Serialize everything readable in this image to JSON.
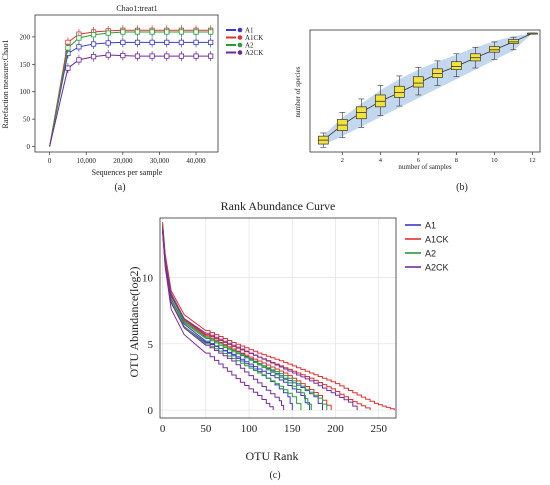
{
  "panel_labels": [
    "(a)",
    "(b)",
    "(c)"
  ],
  "chart_data": [
    {
      "type": "line",
      "title": "Chao1:treat1",
      "xlabel": "Sequences per sample",
      "ylabel": "Rarefaction measure:Chao1",
      "xlim": [
        -4000,
        46000
      ],
      "ylim": [
        -10,
        240
      ],
      "xticks": [
        0,
        10000,
        20000,
        30000,
        40000
      ],
      "xtick_labels": [
        "0",
        "10,000",
        "20,000",
        "30,000",
        "40,000"
      ],
      "yticks": [
        0,
        50,
        100,
        150,
        200
      ],
      "legend_position": "top-right",
      "x": [
        0,
        5000,
        8000,
        12000,
        16000,
        20000,
        24000,
        28000,
        32000,
        36000,
        40000,
        44000
      ],
      "series": [
        {
          "name": "A1",
          "color": "#3a3ac8",
          "values": [
            0,
            170,
            182,
            187,
            189,
            190,
            190,
            190,
            190,
            190,
            190,
            190
          ]
        },
        {
          "name": "A1CK",
          "color": "#e03030",
          "values": [
            0,
            190,
            205,
            209,
            211,
            212,
            212,
            212,
            212,
            212,
            212,
            212
          ]
        },
        {
          "name": "A2",
          "color": "#2a9a3a",
          "values": [
            0,
            180,
            198,
            204,
            207,
            209,
            209,
            209,
            209,
            209,
            209,
            209
          ]
        },
        {
          "name": "A2CK",
          "color": "#6a2a9a",
          "values": [
            0,
            143,
            158,
            164,
            167,
            166,
            165,
            165,
            165,
            165,
            165,
            165
          ]
        }
      ]
    },
    {
      "type": "box",
      "title": "",
      "xlabel": "number of samples",
      "ylabel": "number of species",
      "xlim": [
        0.3,
        12.4
      ],
      "ylim": [
        130,
        900
      ],
      "xticks": [
        2,
        4,
        6,
        8,
        10,
        12
      ],
      "grid": false,
      "x": [
        1,
        2,
        3,
        4,
        5,
        6,
        7,
        8,
        9,
        10,
        11,
        12
      ],
      "median": [
        205,
        300,
        380,
        450,
        505,
        565,
        625,
        670,
        725,
        775,
        825,
        880
      ],
      "q1": [
        180,
        265,
        340,
        415,
        475,
        540,
        600,
        650,
        705,
        760,
        815,
        880
      ],
      "q3": [
        230,
        335,
        415,
        490,
        545,
        605,
        655,
        700,
        750,
        795,
        840,
        880
      ],
      "whisker_low": [
        160,
        220,
        285,
        360,
        420,
        490,
        550,
        605,
        660,
        715,
        775,
        880
      ],
      "whisker_high": [
        250,
        380,
        465,
        550,
        610,
        665,
        705,
        750,
        790,
        825,
        855,
        880
      ],
      "envelope_low": [
        175,
        230,
        290,
        350,
        410,
        470,
        530,
        590,
        650,
        710,
        770,
        880
      ],
      "envelope_high": [
        235,
        345,
        435,
        520,
        590,
        650,
        700,
        745,
        790,
        830,
        860,
        880
      ]
    },
    {
      "type": "line",
      "title": "Rank Abundance Curve",
      "xlabel": "OTU Rank",
      "ylabel": "OTU Abundance(log2)",
      "xlim": [
        -3,
        270
      ],
      "ylim": [
        -0.6,
        14.5
      ],
      "xticks": [
        0,
        50,
        100,
        150,
        200,
        250
      ],
      "yticks": [
        0,
        5,
        10
      ],
      "grid": true,
      "legend_position": "top-right",
      "legend": [
        {
          "name": "A1",
          "color": "#3a3ac8"
        },
        {
          "name": "A1CK",
          "color": "#e03030"
        },
        {
          "name": "A2",
          "color": "#2a9a3a"
        },
        {
          "name": "A2CK",
          "color": "#7a2a9a"
        }
      ],
      "series": [
        {
          "name": "A1",
          "color": "#3a3ac8",
          "points": [
            [
              0,
              14
            ],
            [
              3,
              11.5
            ],
            [
              10,
              8.8
            ],
            [
              25,
              6.9
            ],
            [
              50,
              5.6
            ],
            [
              80,
              4.6
            ],
            [
              110,
              3.5
            ],
            [
              140,
              2.4
            ],
            [
              160,
              1.7
            ],
            [
              175,
              1
            ],
            [
              185,
              0
            ]
          ]
        },
        {
          "name": "A1",
          "color": "#3a3ac8",
          "points": [
            [
              0,
              13.8
            ],
            [
              3,
              11.2
            ],
            [
              10,
              8.4
            ],
            [
              25,
              6.5
            ],
            [
              50,
              5.2
            ],
            [
              80,
              4.1
            ],
            [
              110,
              2.9
            ],
            [
              130,
              1.9
            ],
            [
              145,
              1
            ],
            [
              150,
              0
            ]
          ]
        },
        {
          "name": "A1",
          "color": "#3a3ac8",
          "points": [
            [
              0,
              13.6
            ],
            [
              3,
              11
            ],
            [
              10,
              8.1
            ],
            [
              25,
              6.3
            ],
            [
              50,
              5.1
            ],
            [
              80,
              4.2
            ],
            [
              110,
              3.1
            ],
            [
              140,
              2.1
            ],
            [
              160,
              1.1
            ],
            [
              170,
              0
            ]
          ]
        },
        {
          "name": "A1CK",
          "color": "#e03030",
          "points": [
            [
              0,
              14.2
            ],
            [
              3,
              11.8
            ],
            [
              10,
              9
            ],
            [
              25,
              7.2
            ],
            [
              50,
              6
            ],
            [
              80,
              5.1
            ],
            [
              110,
              4.3
            ],
            [
              140,
              3.6
            ],
            [
              170,
              2.8
            ],
            [
              200,
              2
            ],
            [
              220,
              1.3
            ],
            [
              245,
              0.5
            ],
            [
              268,
              0
            ]
          ]
        },
        {
          "name": "A1CK",
          "color": "#e03030",
          "points": [
            [
              0,
              13.9
            ],
            [
              3,
              11.3
            ],
            [
              10,
              8.6
            ],
            [
              25,
              6.8
            ],
            [
              50,
              5.6
            ],
            [
              80,
              4.6
            ],
            [
              110,
              3.7
            ],
            [
              140,
              2.8
            ],
            [
              160,
              2
            ],
            [
              180,
              1.1
            ],
            [
              195,
              0
            ]
          ]
        },
        {
          "name": "A1CK",
          "color": "#e03030",
          "points": [
            [
              0,
              14
            ],
            [
              3,
              11.4
            ],
            [
              10,
              8.7
            ],
            [
              25,
              6.9
            ],
            [
              50,
              5.7
            ],
            [
              80,
              4.8
            ],
            [
              110,
              4
            ],
            [
              140,
              3.2
            ],
            [
              170,
              2.4
            ],
            [
              195,
              1.6
            ],
            [
              215,
              0.8
            ],
            [
              240,
              0
            ]
          ]
        },
        {
          "name": "A2",
          "color": "#2a9a3a",
          "points": [
            [
              0,
              13.9
            ],
            [
              3,
              11.4
            ],
            [
              10,
              8.7
            ],
            [
              25,
              6.7
            ],
            [
              50,
              5.5
            ],
            [
              80,
              4.5
            ],
            [
              110,
              3.4
            ],
            [
              140,
              2.3
            ],
            [
              160,
              1.3
            ],
            [
              172,
              0
            ]
          ]
        },
        {
          "name": "A2",
          "color": "#2a9a3a",
          "points": [
            [
              0,
              13.5
            ],
            [
              3,
              11
            ],
            [
              10,
              8.2
            ],
            [
              25,
              6.3
            ],
            [
              50,
              5
            ],
            [
              80,
              3.9
            ],
            [
              110,
              2.8
            ],
            [
              135,
              1.8
            ],
            [
              150,
              1
            ],
            [
              160,
              0
            ]
          ]
        },
        {
          "name": "A2",
          "color": "#2a9a3a",
          "points": [
            [
              0,
              13.7
            ],
            [
              3,
              11.1
            ],
            [
              10,
              8.4
            ],
            [
              25,
              6.6
            ],
            [
              50,
              5.4
            ],
            [
              80,
              4.4
            ],
            [
              110,
              3.5
            ],
            [
              140,
              2.6
            ],
            [
              160,
              1.8
            ],
            [
              180,
              0.9
            ],
            [
              190,
              0
            ]
          ]
        },
        {
          "name": "A2CK",
          "color": "#7a2a9a",
          "points": [
            [
              0,
              13.5
            ],
            [
              3,
              10.8
            ],
            [
              10,
              7.6
            ],
            [
              25,
              5.7
            ],
            [
              50,
              4.3
            ],
            [
              70,
              3.2
            ],
            [
              90,
              2.1
            ],
            [
              110,
              1.1
            ],
            [
              120,
              0.5
            ],
            [
              128,
              0
            ]
          ]
        },
        {
          "name": "A2CK",
          "color": "#7a2a9a",
          "points": [
            [
              0,
              13.8
            ],
            [
              3,
              11.3
            ],
            [
              10,
              8.6
            ],
            [
              25,
              6.9
            ],
            [
              50,
              5.8
            ],
            [
              80,
              4.9
            ],
            [
              110,
              4
            ],
            [
              140,
              3.1
            ],
            [
              170,
              2.2
            ],
            [
              195,
              1.3
            ],
            [
              215,
              0.6
            ],
            [
              225,
              0
            ]
          ]
        },
        {
          "name": "A2CK",
          "color": "#7a2a9a",
          "points": [
            [
              0,
              13.6
            ],
            [
              3,
              11
            ],
            [
              10,
              8.1
            ],
            [
              25,
              6.2
            ],
            [
              50,
              4.9
            ],
            [
              80,
              3.7
            ],
            [
              100,
              2.6
            ],
            [
              120,
              1.5
            ],
            [
              135,
              0.7
            ],
            [
              140,
              0
            ]
          ]
        }
      ]
    }
  ]
}
